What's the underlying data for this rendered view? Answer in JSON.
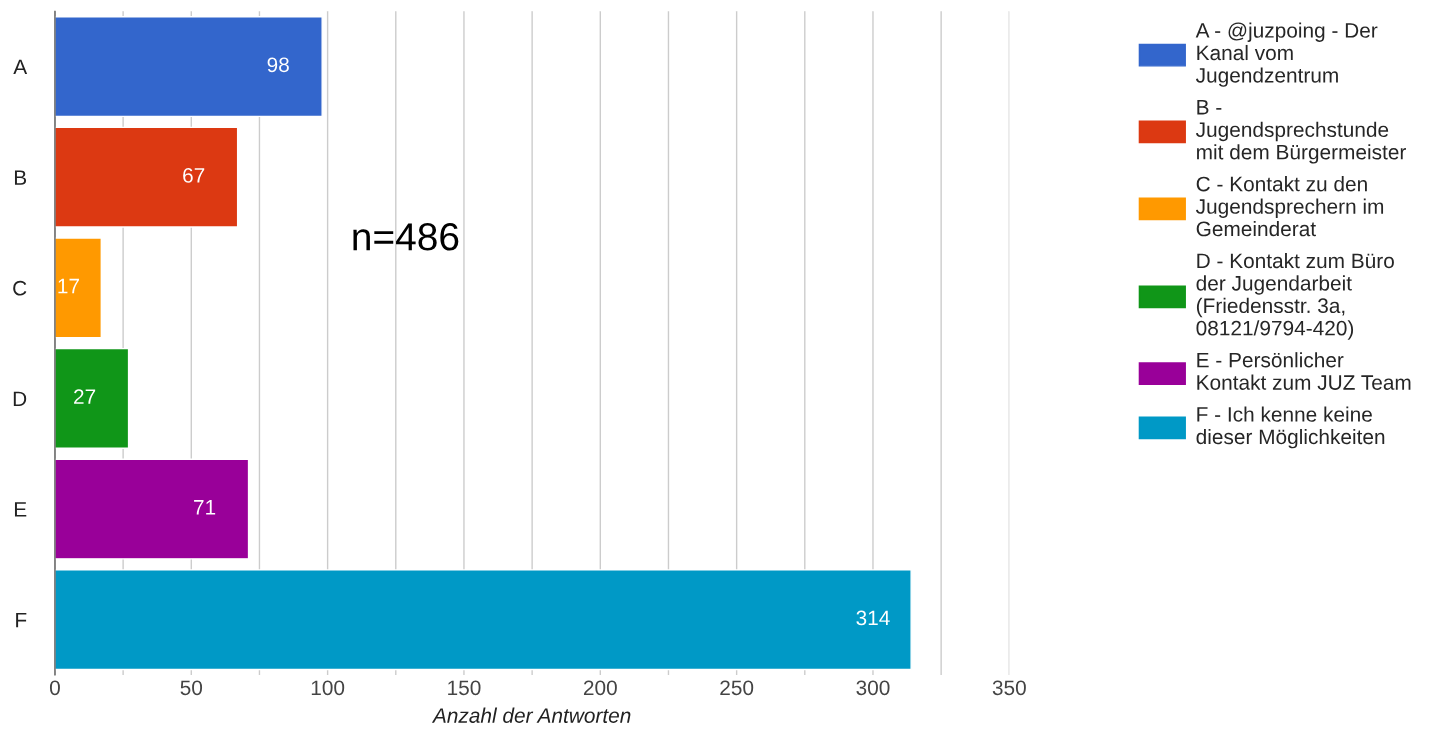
{
  "chart_data": {
    "type": "bar",
    "orientation": "horizontal",
    "xlabel": "Anzahl der Antworten",
    "categories": [
      "A",
      "B",
      "C",
      "D",
      "E",
      "F"
    ],
    "series": [
      {
        "name": "A - @juzpoing - Der Kanal vom Jugendzentrum",
        "color": "#3366cc",
        "values": [
          98,
          null,
          null,
          null,
          null,
          null
        ]
      },
      {
        "name": "B - Jugendsprechstunde mit dem Bürgermeister",
        "color": "#dc3912",
        "values": [
          null,
          67,
          null,
          null,
          null,
          null
        ]
      },
      {
        "name": "C - Kontakt zu den Jugendsprechern im Gemeinderat",
        "color": "#ff9900",
        "values": [
          null,
          null,
          17,
          null,
          null,
          null
        ]
      },
      {
        "name": "D - Kontakt zum Büro der Jugendarbeit (Friedensstr. 3a, 08121/9794-420)",
        "color": "#109618",
        "values": [
          null,
          null,
          null,
          27,
          null,
          null
        ]
      },
      {
        "name": "E - Persönlicher Kontakt zum JUZ Team",
        "color": "#990099",
        "values": [
          null,
          null,
          null,
          null,
          71,
          null
        ]
      },
      {
        "name": "F - Ich kenne keine dieser Möglichkeiten",
        "color": "#0099c6",
        "values": [
          null,
          null,
          null,
          null,
          null,
          314
        ]
      }
    ],
    "xlim": [
      0,
      350
    ],
    "xticks": [
      0,
      {
        "value": 25,
        "label": null
      },
      50,
      {
        "value": 75,
        "label": null
      },
      100,
      {
        "value": 125,
        "label": null
      },
      150,
      {
        "value": 175,
        "label": null
      },
      200,
      {
        "value": 225,
        "label": null
      },
      250,
      {
        "value": 275,
        "label": null
      },
      300,
      {
        "value": 325,
        "label": null
      },
      350
    ],
    "grid": "x",
    "data_labels": true,
    "legend": "right",
    "annotations": [
      "n=486"
    ]
  }
}
